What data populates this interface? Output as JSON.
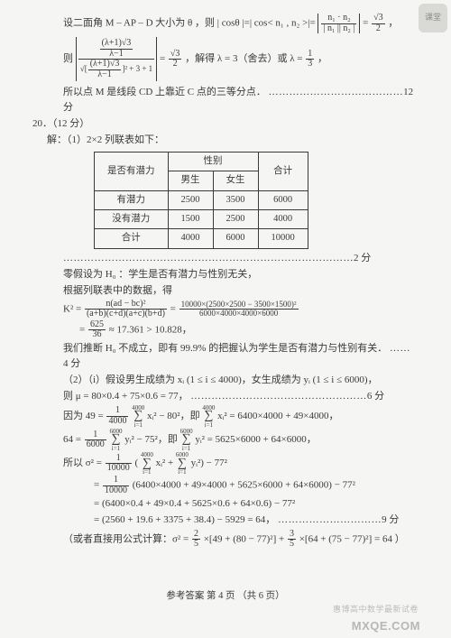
{
  "geom": {
    "intro": "设二面角 M – AP – D 大小为 θ ，则 | cosθ |=| cos< n₁ , n₂ >|=",
    "top_num": "n₁ · n₂",
    "top_den": "| n₁ || n₂ |",
    "top_rhs_num": "√3",
    "top_rhs_den": "2",
    "comma": "，",
    "block_prefix": "则",
    "inner_top_num": "(λ+1)√3",
    "inner_top_den": "λ−1",
    "inner_bot_left_num": "(λ+1)√3",
    "inner_bot_left_den": "λ−1",
    "inner_bot_tail": "]² + 3 + 1",
    "rhs_num": "√3",
    "rhs_den": "2",
    "solve": "，解得 λ = 3（舍去）或 λ =",
    "third_num": "1",
    "third_den": "3",
    "tail": "，",
    "concl": "所以点 M 是线段 CD 上靠近 C 点的三等分点．",
    "dots": "…………………………………",
    "score": "12 分"
  },
  "q20": {
    "num": "20．（12 分）",
    "sol_lead": "解：（1）2×2 列联表如下：",
    "table": {
      "h_row": "是否有潜力",
      "h_gender": "性别",
      "h_male": "男生",
      "h_female": "女生",
      "h_total": "合计",
      "r1": [
        "有潜力",
        "2500",
        "3500",
        "6000"
      ],
      "r2": [
        "没有潜力",
        "1500",
        "2500",
        "4000"
      ],
      "r3": [
        "合计",
        "4000",
        "6000",
        "10000"
      ]
    },
    "dots2": "…………………………………………………………………………",
    "score2": "2 分",
    "h0": "零假设为 H₀ ：学生是否有潜力与性别无关，",
    "data_lead": "根据列联表中的数据，得",
    "k2_lhs": "K² =",
    "k2_f1_num": "n(ad − bc)²",
    "k2_f1_den": "(a+b)(c+d)(a+c)(b+d)",
    "k2_f2_num": "10000×(2500×2500 − 3500×1500)²",
    "k2_f2_den": "6000×4000×4000×6000",
    "k2_625_num": "625",
    "k2_625_den": "36",
    "k2_approx": "≈ 17.361 > 10.828，",
    "reject": "我们推断 H₀ 不成立，即有 99.9% 的把握认为学生是否有潜力与性别有关．",
    "dots4": "……",
    "score4": "4 分",
    "p2_i": "（2）（i）假设男生成绩为 xᵢ (1 ≤ i ≤ 4000)，女生成绩为 yᵢ (1 ≤ i ≤ 6000)，",
    "mu": "则 μ = 80×0.4 + 75×0.6 = 77，",
    "dots6": "……………………………………………",
    "score6": "6 分",
    "eq49a": "因为 49 =",
    "f1_num": "1",
    "f1_den": "4000",
    "sum_top": "4000",
    "sum_bot": "i=1",
    "eq49_tailA": "xᵢ² − 80²，即",
    "eq49_tailB": "xᵢ² = 6400×4000 + 49×4000，",
    "eq64a": "64 =",
    "f2_num": "1",
    "f2_den": "6000",
    "sum2_top": "6000",
    "eq64_tailA": "yᵢ² − 75²，即",
    "eq64_tailB": "yᵢ² = 5625×6000 + 64×6000，",
    "sig_lead": "所以 σ² =",
    "f3_num": "1",
    "f3_den": "10000",
    "sig_inner": "xᵢ² +",
    "sig_inner2": "yᵢ²) − 77²",
    "line2_lead": " =",
    "line2_mid": "(6400×4000 + 49×4000 + 5625×6000 + 64×6000) − 77²",
    "line3": " = (6400×0.4 + 49×0.4 + 5625×0.6 + 64×0.6) − 77²",
    "line4": " = (2560 + 19.6 + 3375 + 38.4) − 5929 = 64，",
    "dots9": "…………………………",
    "score9": "9 分",
    "alt_lead": "（或者直接用公式计算：σ² =",
    "alt_f25_num": "2",
    "alt_f25_den": "5",
    "alt_midA": "×[49 + (80 − 77)²] +",
    "alt_f35_num": "3",
    "alt_f35_den": "5",
    "alt_midB": "×[64 + (75 − 77)²] = 64 ）"
  },
  "footer": "参考答案  第 4 页 （共 6 页）",
  "watermark": "MXQE.COM",
  "wm2": "惠博高中数学最新试卷",
  "corner": "课堂"
}
